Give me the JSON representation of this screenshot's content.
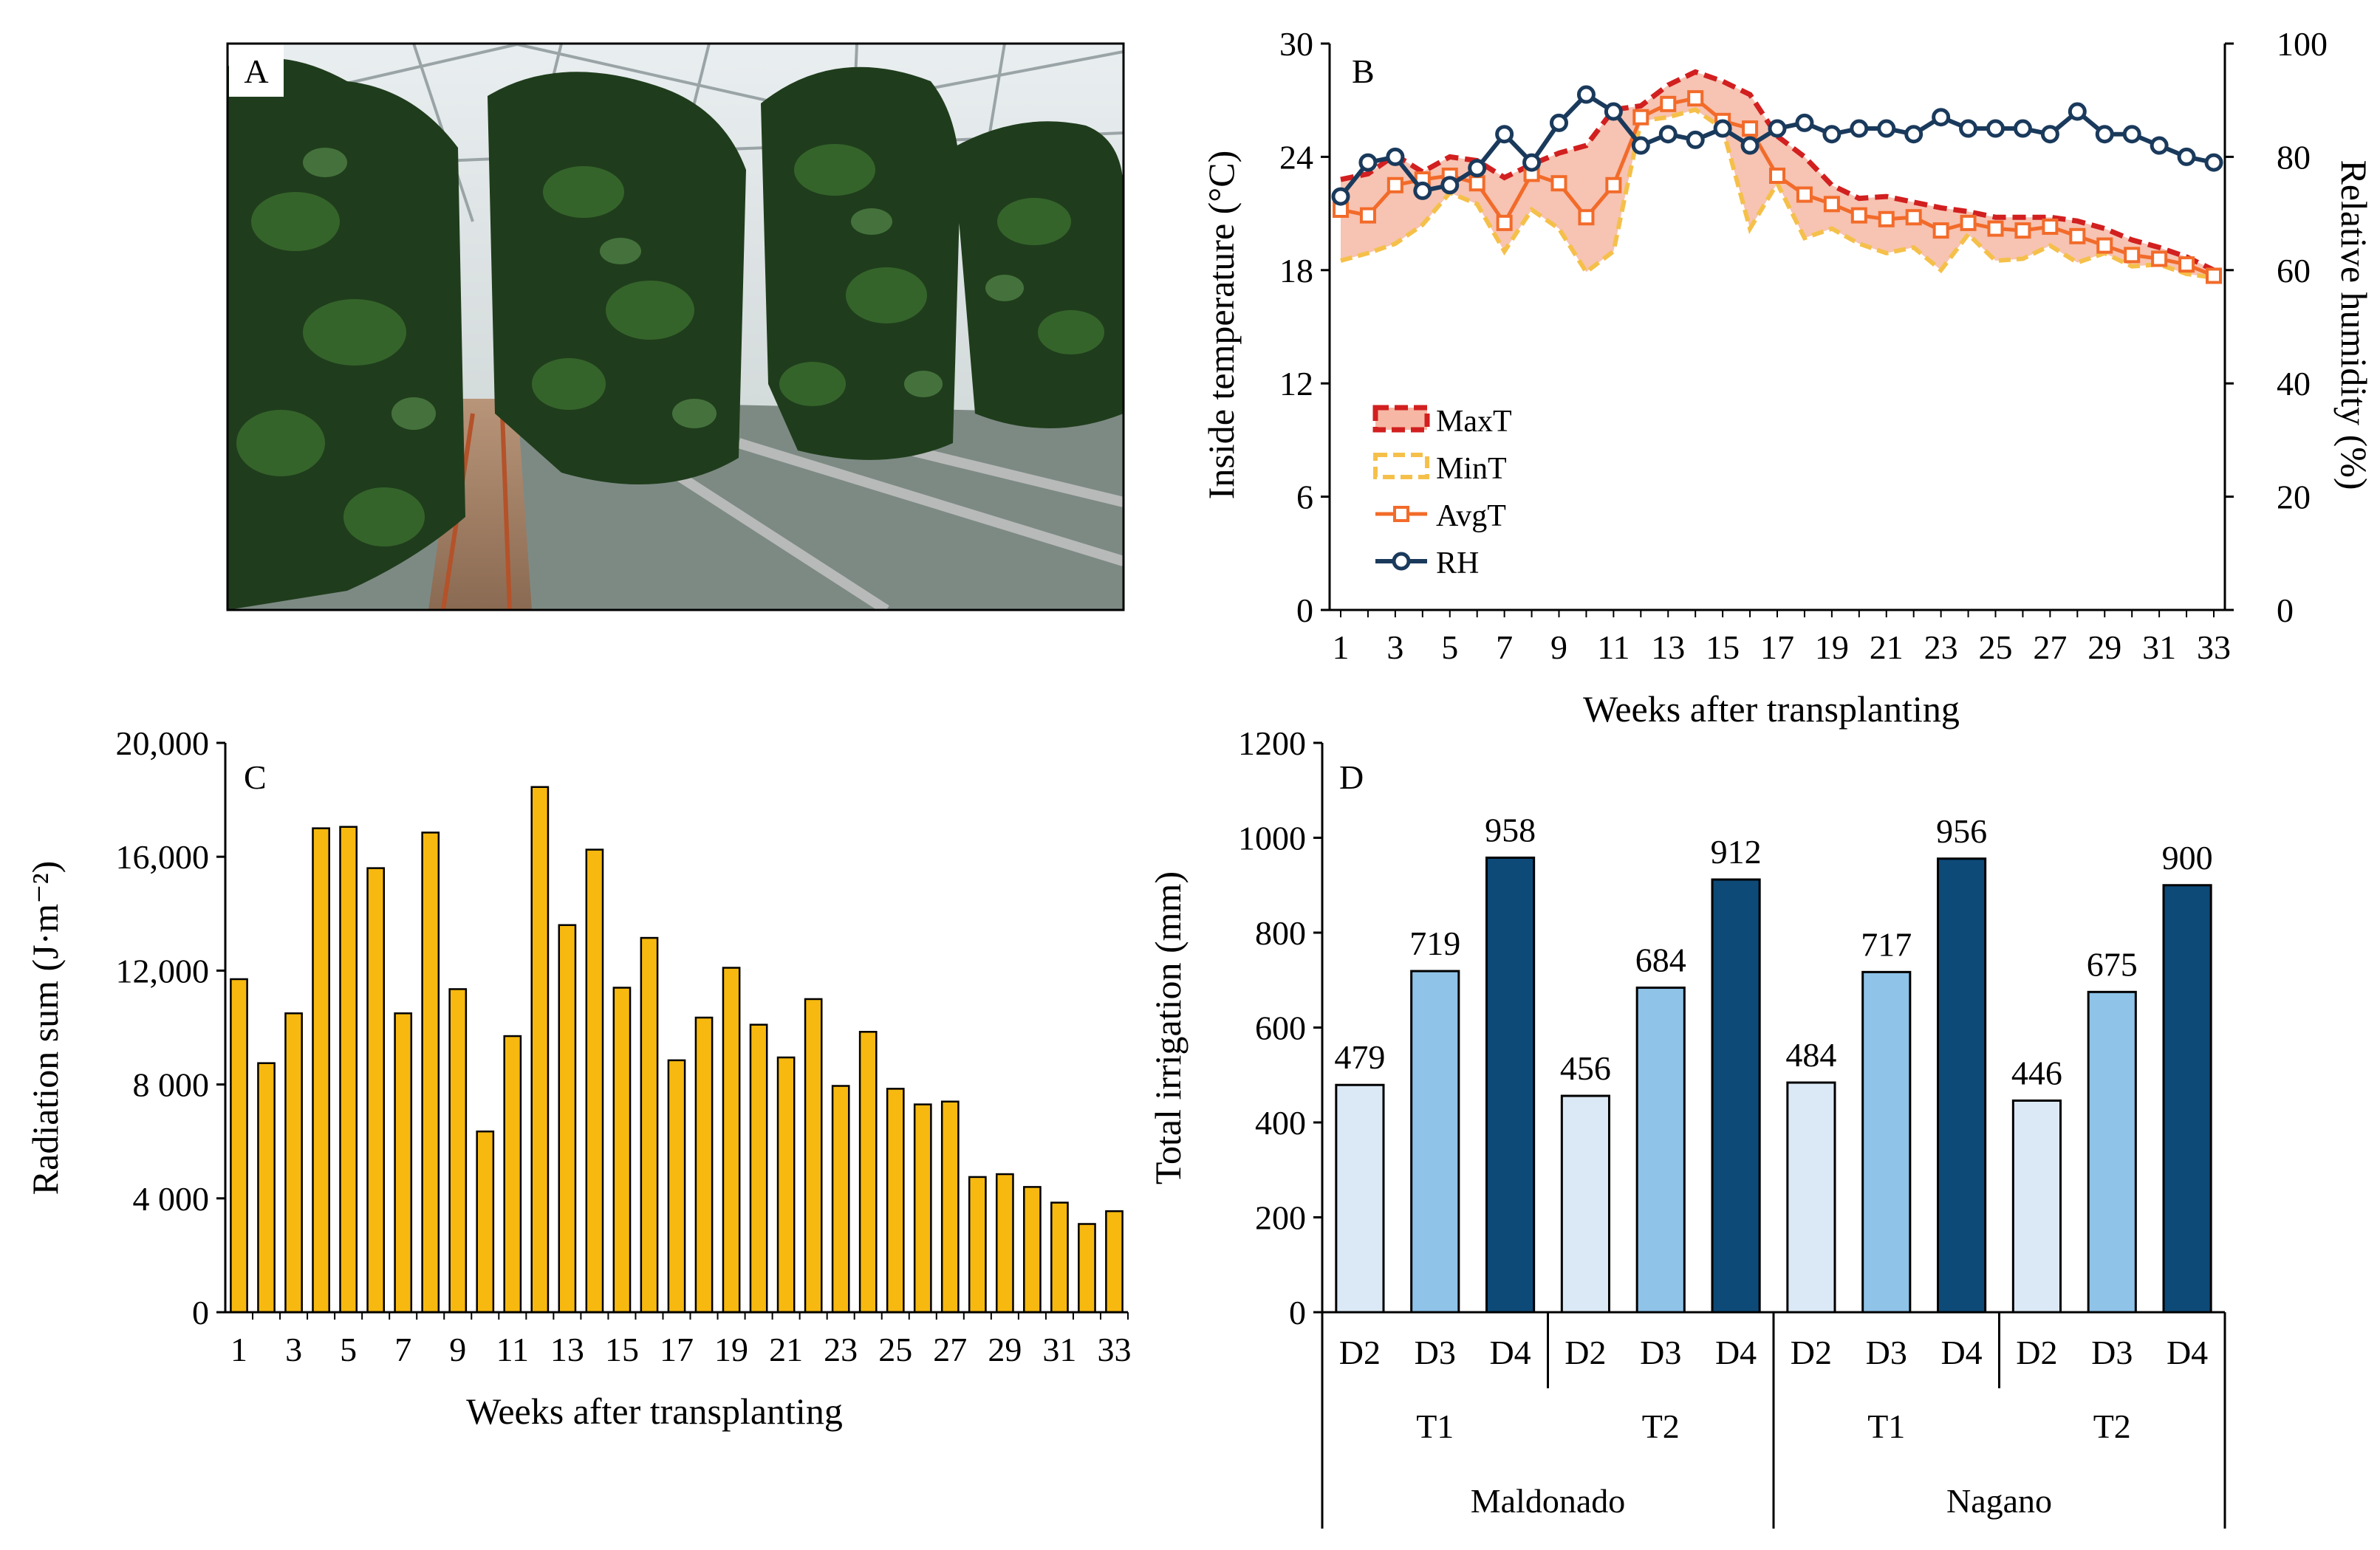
{
  "colors": {
    "maxT": "#d21f1f",
    "minT": "#f5c04a",
    "avgT": "#f26b2a",
    "rh": "#1a3a5c",
    "band": "#f6b8a4",
    "radiation": "#f7b90f",
    "D2": "#dbe9f6",
    "D3": "#8fc3e8",
    "D4": "#0d4a78",
    "foliage_dark": "#1f3d1c",
    "foliage": "#3a6b2e",
    "greenhouse_roof": "#dfe6e8"
  },
  "panelA": {
    "letter": "A",
    "alt": "Greenhouse with rows of tall pepper plants"
  },
  "chart_data": [
    {
      "type": "line",
      "panel": "B",
      "letter": "B",
      "xlabel": "Weeks after transplanting",
      "ylabel": "Inside temperature (°C)",
      "ylabel_right": "Relative humidity (%)",
      "x": [
        1,
        2,
        3,
        4,
        5,
        6,
        7,
        8,
        9,
        10,
        11,
        12,
        13,
        14,
        15,
        16,
        17,
        18,
        19,
        20,
        21,
        22,
        23,
        24,
        25,
        26,
        27,
        28,
        29,
        30,
        31,
        32,
        33
      ],
      "x_ticks": [
        "1",
        "3",
        "5",
        "7",
        "9",
        "11",
        "13",
        "15",
        "17",
        "19",
        "21",
        "23",
        "25",
        "27",
        "29",
        "31",
        "33"
      ],
      "ylim": [
        0,
        30
      ],
      "y_ticks": [
        "0",
        "6",
        "12",
        "18",
        "24",
        "30"
      ],
      "ylim_right": [
        0,
        100
      ],
      "y_ticks_right": [
        "0",
        "20",
        "40",
        "60",
        "80",
        "100"
      ],
      "legend": [
        "MaxT",
        "MinT",
        "AvgT",
        "RH"
      ],
      "legend_position": "center-left",
      "series": [
        {
          "name": "MaxT",
          "axis": "left",
          "style": "dashed",
          "values": [
            22.8,
            23.1,
            24.1,
            23.2,
            24.0,
            23.8,
            22.9,
            23.6,
            24.2,
            24.6,
            26.5,
            26.7,
            27.8,
            28.5,
            28.0,
            27.3,
            25.1,
            24.0,
            22.5,
            21.8,
            21.9,
            21.6,
            21.3,
            21.1,
            20.8,
            20.8,
            20.8,
            20.6,
            20.2,
            19.6,
            19.2,
            18.7,
            18.0
          ]
        },
        {
          "name": "MinT",
          "axis": "left",
          "style": "dashed",
          "values": [
            18.5,
            18.9,
            19.4,
            20.4,
            22.1,
            21.5,
            19.0,
            21.2,
            20.2,
            17.9,
            19.0,
            25.9,
            26.1,
            26.5,
            25.5,
            20.2,
            22.6,
            19.7,
            20.2,
            19.4,
            18.9,
            19.2,
            18.0,
            19.9,
            18.5,
            18.6,
            19.3,
            18.4,
            18.9,
            18.2,
            18.3,
            17.8,
            17.6
          ]
        },
        {
          "name": "AvgT",
          "axis": "left",
          "style": "solid-square",
          "values": [
            21.2,
            20.9,
            22.5,
            22.8,
            23.0,
            22.6,
            20.5,
            23.1,
            22.6,
            20.8,
            22.5,
            26.1,
            26.8,
            27.1,
            25.9,
            25.5,
            23.0,
            22.0,
            21.5,
            20.9,
            20.7,
            20.8,
            20.1,
            20.5,
            20.2,
            20.1,
            20.3,
            19.8,
            19.3,
            18.8,
            18.6,
            18.3,
            17.7
          ]
        },
        {
          "name": "RH",
          "axis": "right",
          "style": "solid-circle",
          "values": [
            73,
            79,
            80,
            74,
            75,
            78,
            84,
            79,
            86,
            91,
            88,
            82,
            84,
            83,
            85,
            82,
            85,
            86,
            84,
            85,
            85,
            84,
            87,
            85,
            85,
            85,
            84,
            88,
            84,
            84,
            82,
            80,
            79
          ]
        }
      ]
    },
    {
      "type": "bar",
      "panel": "C",
      "letter": "C",
      "xlabel": "Weeks after transplanting",
      "ylabel": "Radiation sum (J·m⁻²)",
      "categories": [
        1,
        2,
        3,
        4,
        5,
        6,
        7,
        8,
        9,
        10,
        11,
        12,
        13,
        14,
        15,
        16,
        17,
        18,
        19,
        20,
        21,
        22,
        23,
        24,
        25,
        26,
        27,
        28,
        29,
        30,
        31,
        32,
        33
      ],
      "x_ticks": [
        "1",
        "3",
        "5",
        "7",
        "9",
        "11",
        "13",
        "15",
        "17",
        "19",
        "21",
        "23",
        "25",
        "27",
        "29",
        "31",
        "33"
      ],
      "values": [
        11700,
        8750,
        10500,
        17000,
        17050,
        15600,
        10500,
        16850,
        11350,
        6350,
        9700,
        18450,
        13600,
        16250,
        11400,
        13150,
        8850,
        10350,
        12100,
        10100,
        8950,
        11000,
        7950,
        9850,
        7850,
        7300,
        7400,
        4750,
        4850,
        4400,
        3850,
        3100,
        3550
      ],
      "ylim": [
        0,
        20000
      ],
      "y_ticks": [
        "0",
        "4 000",
        "8 000",
        "12,000",
        "16,000",
        "20,000"
      ]
    },
    {
      "type": "bar",
      "panel": "D",
      "letter": "D",
      "ylabel": "Total irrigation (mm)",
      "ylim": [
        0,
        1200
      ],
      "y_ticks": [
        "0",
        "200",
        "400",
        "600",
        "800",
        "1000",
        "1200"
      ],
      "categories": [
        "D2",
        "D3",
        "D4",
        "D2",
        "D3",
        "D4",
        "D2",
        "D3",
        "D4",
        "D2",
        "D3",
        "D4"
      ],
      "values": [
        479,
        719,
        958,
        456,
        684,
        912,
        484,
        717,
        956,
        446,
        675,
        900
      ],
      "labels": [
        "479",
        "719",
        "958",
        "456",
        "684",
        "912",
        "484",
        "717",
        "956",
        "446",
        "675",
        "900"
      ],
      "groups": [
        "T1",
        "T2",
        "T1",
        "T2"
      ],
      "supergroups": [
        "Maldonado",
        "Nagano"
      ]
    }
  ]
}
